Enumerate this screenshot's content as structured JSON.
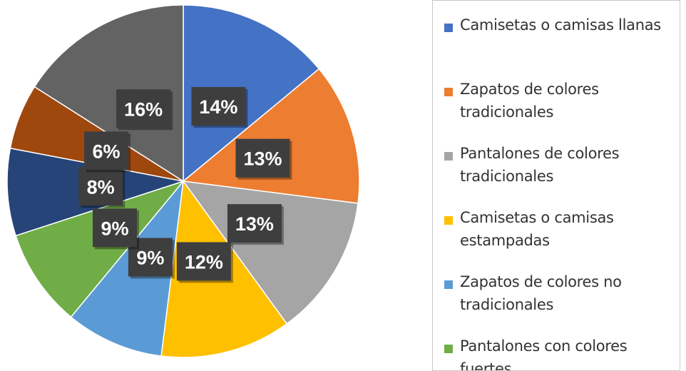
{
  "chart_data": {
    "type": "pie",
    "title": "",
    "legend_position": "right",
    "slices": [
      {
        "label": "Camisetas o camisas llanas",
        "value": 14,
        "display": "14%",
        "color": "#4472C4"
      },
      {
        "label": "Zapatos de colores tradicionales",
        "value": 13,
        "display": "13%",
        "color": "#ED7D31"
      },
      {
        "label": "Pantalones de colores tradicionales",
        "value": 13,
        "display": "13%",
        "color": "#A5A5A5"
      },
      {
        "label": "Camisetas o camisas estampadas",
        "value": 12,
        "display": "12%",
        "color": "#FFC000"
      },
      {
        "label": "Zapatos de colores no tradicionales",
        "value": 9,
        "display": "9%",
        "color": "#5B9BD5"
      },
      {
        "label": "Pantalones con colores fuertes",
        "value": 9,
        "display": "9%",
        "color": "#70AD47"
      },
      {
        "label": "",
        "value": 8,
        "display": "8%",
        "color": "#264478"
      },
      {
        "label": "",
        "value": 6,
        "display": "6%",
        "color": "#9E480E"
      },
      {
        "label": "",
        "value": 16,
        "display": "16%",
        "color": "#636363"
      }
    ]
  }
}
